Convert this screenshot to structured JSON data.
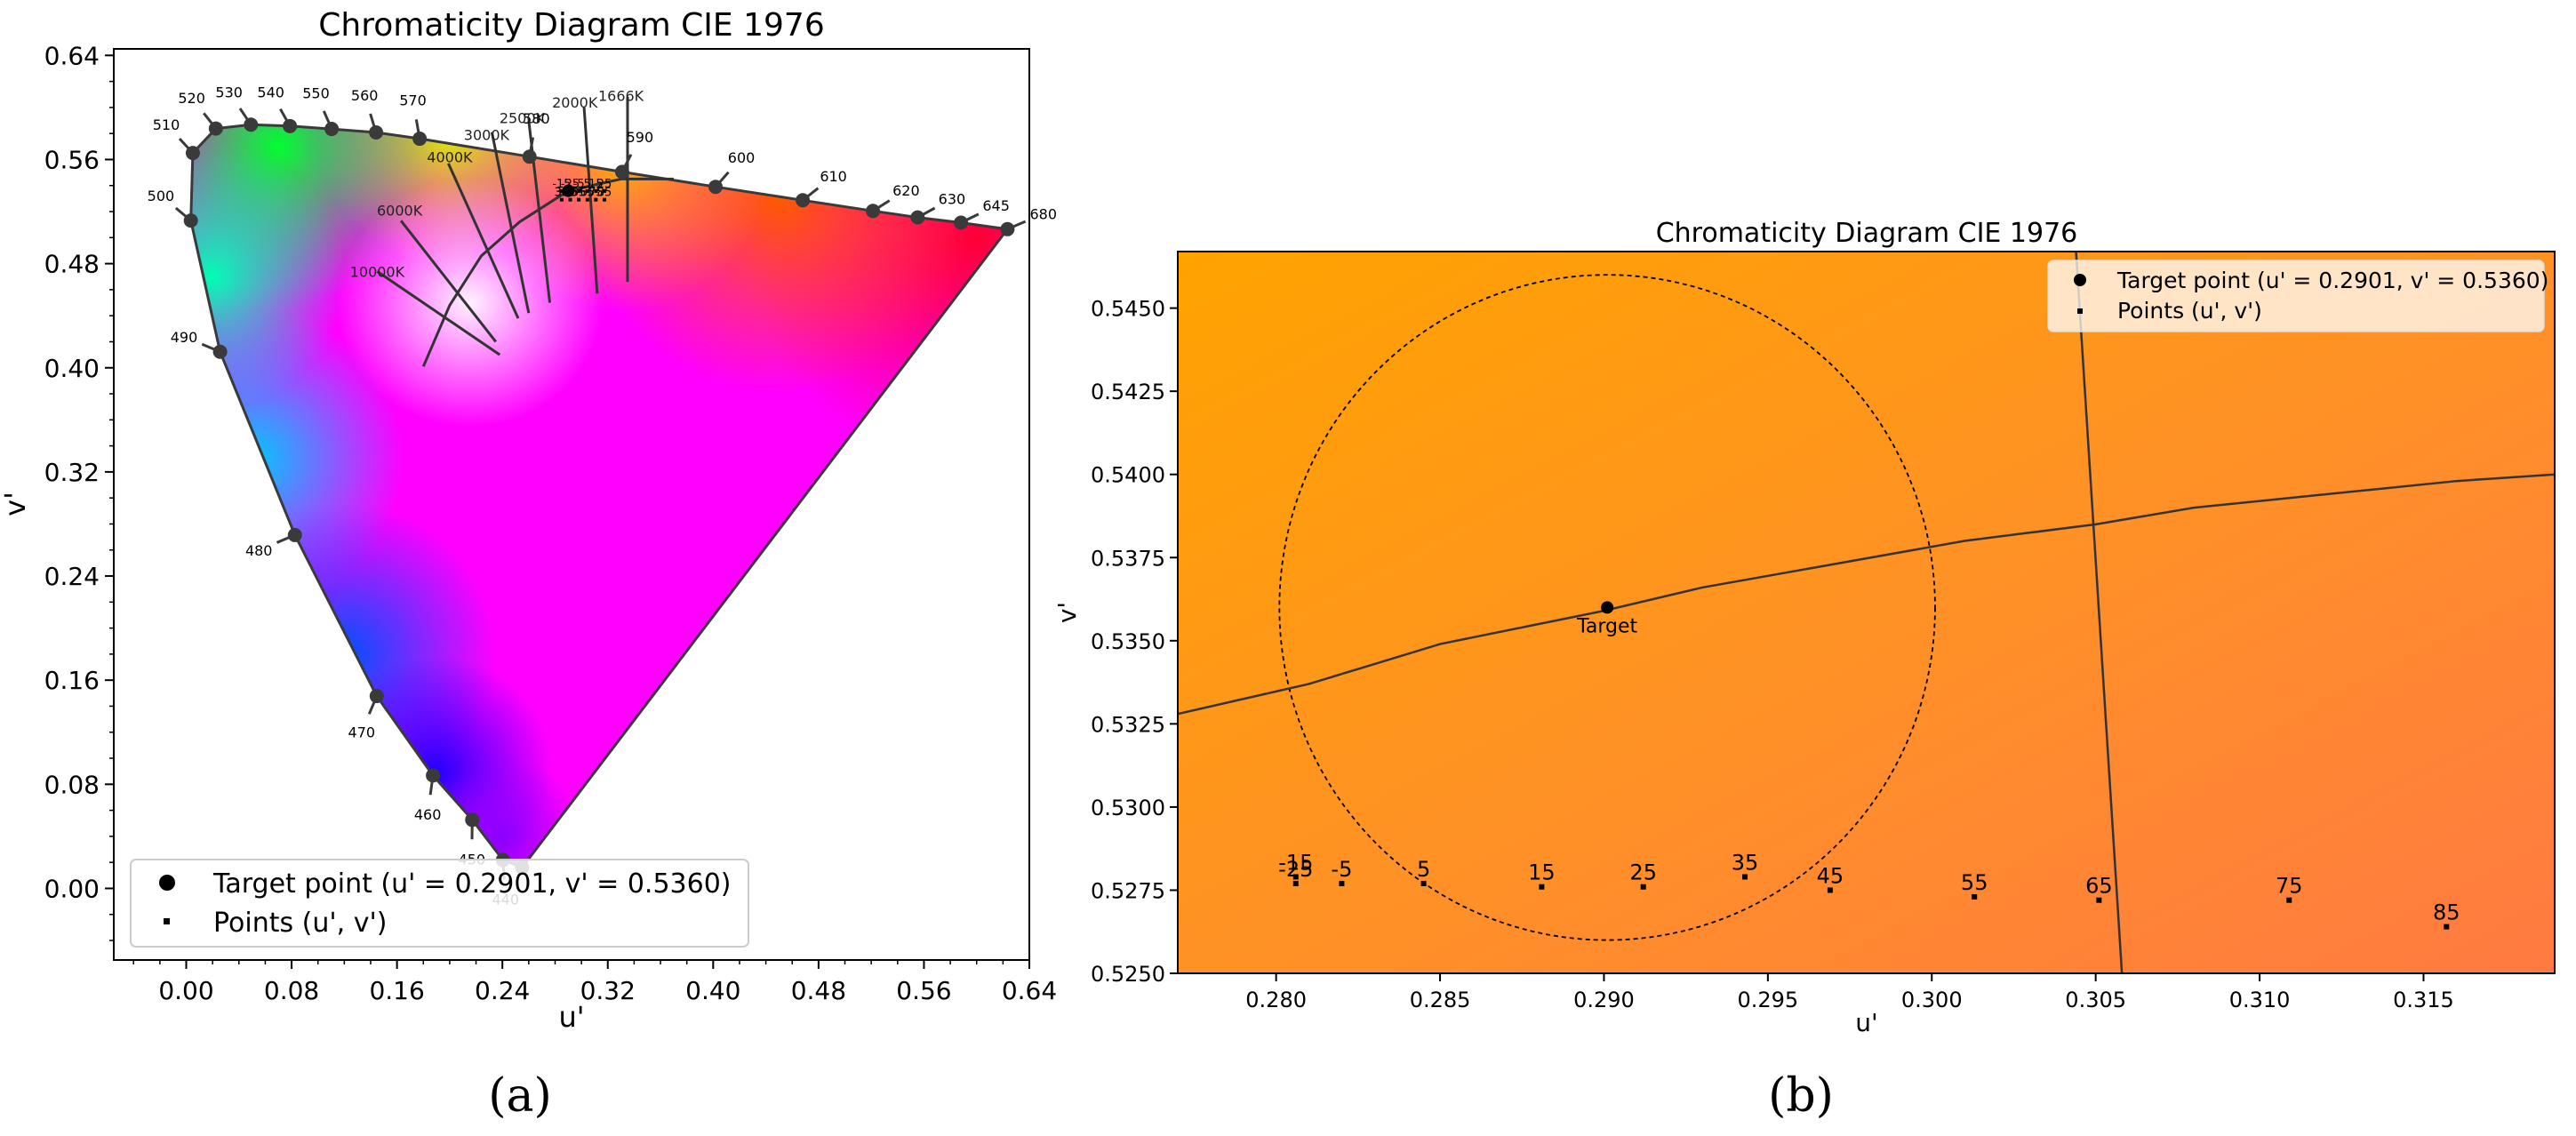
{
  "panel_a": {
    "caption": "(a)",
    "chart_data": {
      "type": "scatter",
      "title": "Chromaticity Diagram CIE 1976",
      "xlabel": "u'",
      "ylabel": "v'",
      "xlim": [
        -0.055,
        0.64
      ],
      "ylim": [
        -0.055,
        0.645
      ],
      "xticks": [
        0.0,
        0.08,
        0.16,
        0.24,
        0.32,
        0.4,
        0.48,
        0.56,
        0.64
      ],
      "xtick_labels": [
        "0.00",
        "0.08",
        "0.16",
        "0.24",
        "0.32",
        "0.40",
        "0.48",
        "0.56",
        "0.64"
      ],
      "yticks": [
        0.0,
        0.08,
        0.16,
        0.24,
        0.32,
        0.4,
        0.48,
        0.56,
        0.64
      ],
      "ytick_labels": [
        "0.00",
        "0.08",
        "0.16",
        "0.24",
        "0.32",
        "0.40",
        "0.48",
        "0.56",
        "0.64"
      ],
      "spectral_locus": [
        {
          "nm": "440",
          "u": 0.2404,
          "v": 0.0218
        },
        {
          "nm": "450",
          "u": 0.2171,
          "v": 0.0527
        },
        {
          "nm": "460",
          "u": 0.1873,
          "v": 0.0868
        },
        {
          "nm": "470",
          "u": 0.1446,
          "v": 0.1478
        },
        {
          "nm": "480",
          "u": 0.0825,
          "v": 0.2715
        },
        {
          "nm": "490",
          "u": 0.0257,
          "v": 0.4123
        },
        {
          "nm": "500",
          "u": 0.0035,
          "v": 0.5131
        },
        {
          "nm": "510",
          "u": 0.005,
          "v": 0.565
        },
        {
          "nm": "520",
          "u": 0.0225,
          "v": 0.5838
        },
        {
          "nm": "530",
          "u": 0.0491,
          "v": 0.5868
        },
        {
          "nm": "540",
          "u": 0.0787,
          "v": 0.5857
        },
        {
          "nm": "550",
          "u": 0.1104,
          "v": 0.5835
        },
        {
          "nm": "560",
          "u": 0.1441,
          "v": 0.5808
        },
        {
          "nm": "570",
          "u": 0.1772,
          "v": 0.576
        },
        {
          "nm": "580",
          "u": 0.2606,
          "v": 0.5622
        },
        {
          "nm": "590",
          "u": 0.3309,
          "v": 0.5505
        },
        {
          "nm": "600",
          "u": 0.4018,
          "v": 0.539
        },
        {
          "nm": "610",
          "u": 0.468,
          "v": 0.5287
        },
        {
          "nm": "620",
          "u": 0.5213,
          "v": 0.5205
        },
        {
          "nm": "630",
          "u": 0.5552,
          "v": 0.5155
        },
        {
          "nm": "645",
          "u": 0.5881,
          "v": 0.5115
        },
        {
          "nm": "680",
          "u": 0.6234,
          "v": 0.5065
        },
        {
          "nm": "",
          "u": 0.255,
          "v": 0.016
        }
      ],
      "cct_labels": [
        {
          "text": "1666K",
          "u": 0.33,
          "v": 0.605
        },
        {
          "text": "2000K",
          "u": 0.295,
          "v": 0.6
        },
        {
          "text": "2500K",
          "u": 0.255,
          "v": 0.588
        },
        {
          "text": "3000K",
          "u": 0.228,
          "v": 0.575
        },
        {
          "text": "4000K",
          "u": 0.2,
          "v": 0.558
        },
        {
          "text": "6000K",
          "u": 0.162,
          "v": 0.517
        },
        {
          "text": "10000K",
          "u": 0.145,
          "v": 0.47
        }
      ],
      "planckian_locus": [
        [
          0.18,
          0.401
        ],
        [
          0.2,
          0.448
        ],
        [
          0.224,
          0.486
        ],
        [
          0.253,
          0.512
        ],
        [
          0.29,
          0.536
        ],
        [
          0.33,
          0.545
        ],
        [
          0.37,
          0.545
        ]
      ],
      "isotherms": [
        [
          [
            0.145,
            0.474
          ],
          [
            0.238,
            0.41
          ]
        ],
        [
          [
            0.163,
            0.513
          ],
          [
            0.235,
            0.42
          ]
        ],
        [
          [
            0.199,
            0.557
          ],
          [
            0.252,
            0.438
          ]
        ],
        [
          [
            0.232,
            0.581
          ],
          [
            0.26,
            0.442
          ]
        ],
        [
          [
            0.26,
            0.59
          ],
          [
            0.276,
            0.45
          ]
        ],
        [
          [
            0.302,
            0.6
          ],
          [
            0.312,
            0.457
          ]
        ],
        [
          [
            0.335,
            0.608
          ],
          [
            0.335,
            0.466
          ]
        ]
      ],
      "target_point": {
        "u": 0.2901,
        "v": 0.536
      },
      "points_cluster": {
        "u": 0.298,
        "v": 0.532
      },
      "legend": {
        "position": "lower-left",
        "entries": [
          "Target point (u' = 0.2901, v' = 0.5360)",
          "Points (u', v')"
        ]
      }
    }
  },
  "panel_b": {
    "caption": "(b)",
    "chart_data": {
      "type": "scatter",
      "title": "Chromaticity Diagram CIE 1976",
      "xlabel": "u'",
      "ylabel": "v'",
      "xlim": [
        0.277,
        0.319
      ],
      "ylim": [
        0.525,
        0.5467
      ],
      "xticks": [
        0.28,
        0.285,
        0.29,
        0.295,
        0.3,
        0.305,
        0.31,
        0.315
      ],
      "xtick_labels": [
        "0.280",
        "0.285",
        "0.290",
        "0.295",
        "0.300",
        "0.305",
        "0.310",
        "0.315"
      ],
      "yticks": [
        0.525,
        0.5275,
        0.53,
        0.5325,
        0.535,
        0.5375,
        0.54,
        0.5425,
        0.545
      ],
      "ytick_labels": [
        "0.5250",
        "0.5275",
        "0.5300",
        "0.5325",
        "0.5350",
        "0.5375",
        "0.5400",
        "0.5425",
        "0.5450"
      ],
      "target": {
        "u": 0.2901,
        "v": 0.536,
        "label": "Target"
      },
      "tolerance_circle_radius": 0.01,
      "planckian_locus": [
        [
          0.277,
          0.5328
        ],
        [
          0.281,
          0.5337
        ],
        [
          0.285,
          0.5349
        ],
        [
          0.29,
          0.5359
        ],
        [
          0.293,
          0.5366
        ],
        [
          0.297,
          0.5373
        ],
        [
          0.301,
          0.538
        ],
        [
          0.305,
          0.5385
        ],
        [
          0.308,
          0.539
        ],
        [
          0.312,
          0.5394
        ],
        [
          0.316,
          0.5398
        ],
        [
          0.319,
          0.54
        ]
      ],
      "isotherm": [
        [
          0.3044,
          0.5467
        ],
        [
          0.3058,
          0.525
        ]
      ],
      "points": [
        {
          "label": "-15",
          "u": 0.2806,
          "v": 0.5279
        },
        {
          "label": "-25",
          "u": 0.2806,
          "v": 0.5277
        },
        {
          "label": "-5",
          "u": 0.282,
          "v": 0.5277
        },
        {
          "label": "5",
          "u": 0.2845,
          "v": 0.5277
        },
        {
          "label": "15",
          "u": 0.2881,
          "v": 0.5276
        },
        {
          "label": "25",
          "u": 0.2912,
          "v": 0.5276
        },
        {
          "label": "35",
          "u": 0.2943,
          "v": 0.5279
        },
        {
          "label": "45",
          "u": 0.2969,
          "v": 0.5275
        },
        {
          "label": "55",
          "u": 0.3013,
          "v": 0.5273
        },
        {
          "label": "65",
          "u": 0.3051,
          "v": 0.5272
        },
        {
          "label": "75",
          "u": 0.3109,
          "v": 0.5272
        },
        {
          "label": "85",
          "u": 0.3157,
          "v": 0.5264
        }
      ],
      "legend": {
        "position": "upper-right",
        "entries": [
          "Target point (u' = 0.2901, v' = 0.5360)",
          "Points (u', v')"
        ]
      }
    }
  }
}
